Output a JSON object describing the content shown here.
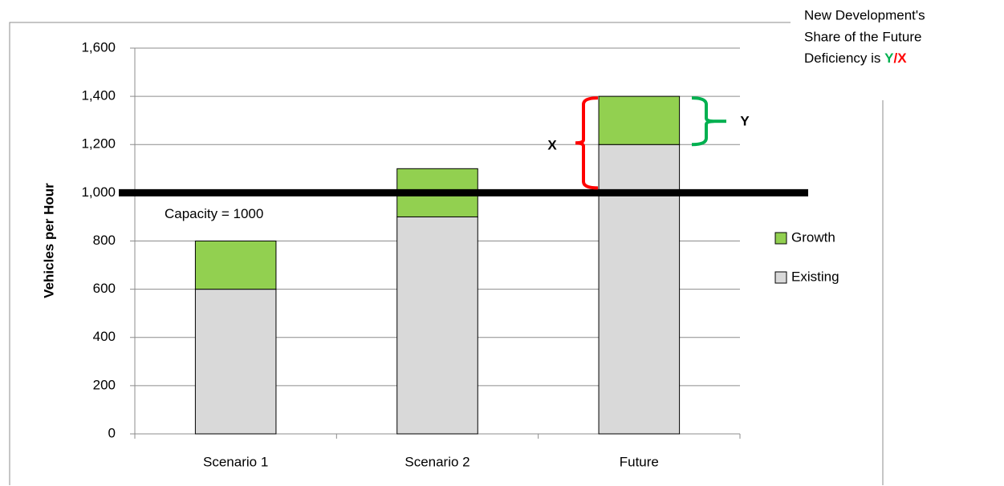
{
  "chart_data": {
    "type": "stacked_bar",
    "y_label": "Vehicles per Hour",
    "categories": [
      "Scenario 1",
      "Scenario 2",
      "Future"
    ],
    "series": [
      {
        "name": "Existing",
        "color": "#d9d9d9",
        "values": [
          600,
          900,
          1200
        ]
      },
      {
        "name": "Growth",
        "color": "#92d050",
        "values": [
          200,
          200,
          200
        ]
      }
    ],
    "ylim": [
      0,
      1600
    ],
    "yticks": [
      0,
      200,
      400,
      600,
      {
        "value": 800,
        "label": "800"
      },
      {
        "value": 1000,
        "label": "1,000"
      },
      {
        "value": 1200,
        "label": "1,200"
      },
      {
        "value": 1400,
        "label": "1,400"
      },
      {
        "value": 1600,
        "label": "1,600"
      }
    ],
    "grid": true,
    "legend": "right",
    "capacity": {
      "value": 1000,
      "label": "Capacity = 1000"
    },
    "bracket_x": {
      "label": "X",
      "color": "#ff0000"
    },
    "bracket_y": {
      "label": "Y",
      "color": "#00b050"
    },
    "annotation": {
      "lines": [
        "New Development's",
        "Share of the Future",
        "Deficiency is "
      ],
      "y_letter": "Y",
      "slash": "/",
      "x_letter": "X"
    }
  }
}
